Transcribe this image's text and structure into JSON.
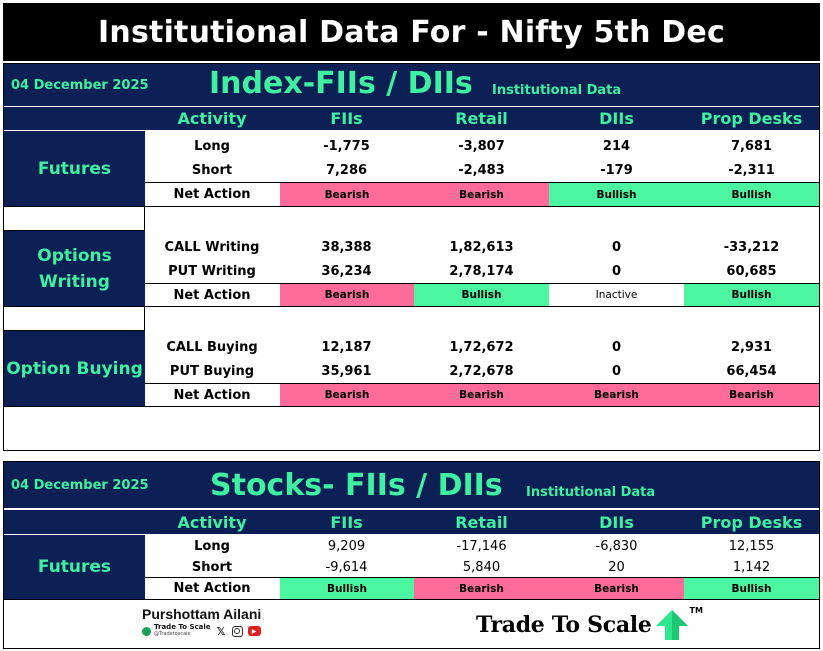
{
  "header": {
    "title": "Institutional Data For - Nifty 5th Dec"
  },
  "index_section": {
    "date": "04 December 2025",
    "title": "Index-FIIs / DIIs",
    "subtitle": "Institutional Data",
    "columns": [
      "Activity",
      "FIIs",
      "Retail",
      "DIIs",
      "Prop Desks"
    ],
    "futures": {
      "label": "Futures",
      "rows": [
        {
          "activity": "Long",
          "values": [
            "-1,775",
            "-3,807",
            "214",
            "7,681"
          ]
        },
        {
          "activity": "Short",
          "values": [
            "7,286",
            "-2,483",
            "-179",
            "-2,311"
          ]
        }
      ],
      "net": {
        "label": "Net Action",
        "values": [
          "Bearish",
          "Bearish",
          "Bullish",
          "Bullish"
        ]
      }
    },
    "options_writing": {
      "label_line1": "Options",
      "label_line2": "Writing",
      "rows": [
        {
          "activity": "CALL Writing",
          "values": [
            "38,388",
            "1,82,613",
            "0",
            "-33,212"
          ]
        },
        {
          "activity": "PUT Writing",
          "values": [
            "36,234",
            "2,78,174",
            "0",
            "60,685"
          ]
        }
      ],
      "net": {
        "label": "Net Action",
        "values": [
          "Bearish",
          "Bullish",
          "Inactive",
          "Bullish"
        ]
      }
    },
    "option_buying": {
      "label": "Option Buying",
      "rows": [
        {
          "activity": "CALL Buying",
          "values": [
            "12,187",
            "1,72,672",
            "0",
            "2,931"
          ]
        },
        {
          "activity": "PUT Buying",
          "values": [
            "35,961",
            "2,72,678",
            "0",
            "66,454"
          ]
        }
      ],
      "net": {
        "label": "Net Action",
        "values": [
          "Bearish",
          "Bearish",
          "Bearish",
          "Bearish"
        ]
      }
    }
  },
  "stocks_section": {
    "date": "04 December 2025",
    "title": "Stocks- FIIs / DIIs",
    "subtitle": "Institutional Data",
    "columns": [
      "Activity",
      "FIIs",
      "Retail",
      "DIIs",
      "Prop Desks"
    ],
    "futures": {
      "label": "Futures",
      "rows": [
        {
          "activity": "Long",
          "values": [
            "9,209",
            "-17,146",
            "-6,830",
            "12,155"
          ]
        },
        {
          "activity": "Short",
          "values": [
            "-9,614",
            "5,840",
            "20",
            "1,142"
          ]
        }
      ],
      "net": {
        "label": "Net Action",
        "values": [
          "Bullish",
          "Bearish",
          "Bearish",
          "Bullish"
        ]
      }
    }
  },
  "footer": {
    "author": "Purshottam Ailani",
    "handle_brand": "Trade To Scale",
    "handle": "@Tradetoscale",
    "logo_text": "Trade To Scale",
    "tm": "TM",
    "social_icons": [
      "x-icon",
      "instagram-icon",
      "youtube-icon"
    ]
  },
  "colors": {
    "navy": "#0d2055",
    "accent_green": "#3ef0a0",
    "bearish": "#ff6b9a",
    "bullish": "#4cf5a0"
  }
}
